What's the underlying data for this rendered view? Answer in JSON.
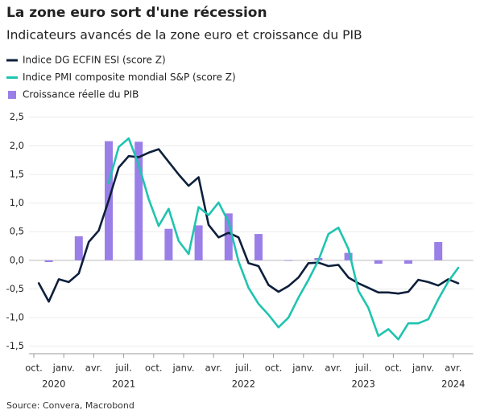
{
  "chart_data": {
    "type": "bar_line",
    "title": "La zone euro sort d'une récession",
    "subtitle": "Indicateurs avancés de la zone euro et croissance du PIB",
    "source": "Source: Convera, Macrobond",
    "categories": [
      "oct.",
      null,
      null,
      "janv.",
      null,
      null,
      "avr.",
      null,
      null,
      "juil.",
      null,
      null,
      "oct.",
      null,
      null,
      "janv.",
      null,
      null,
      "avr.",
      null,
      null,
      "juil.",
      null,
      null,
      "oct.",
      null,
      null,
      "janv.",
      null,
      null,
      "avr.",
      null,
      null,
      "juil.",
      null,
      null,
      "oct.",
      null,
      null,
      "janv.",
      null,
      null,
      "avr.",
      null
    ],
    "years": [
      null,
      null,
      "2020",
      null,
      null,
      null,
      null,
      null,
      null,
      "2021",
      null,
      null,
      null,
      null,
      null,
      null,
      null,
      null,
      null,
      null,
      null,
      "2022",
      null,
      null,
      null,
      null,
      null,
      null,
      null,
      null,
      null,
      null,
      null,
      "2023",
      null,
      null,
      null,
      null,
      null,
      null,
      null,
      null,
      "2024",
      null
    ],
    "series": [
      {
        "name": "Indice DG ECFIN ESI (score Z)",
        "kind": "line",
        "color": "#0d1f3c",
        "values": [
          -0.4,
          -0.72,
          -0.33,
          -0.38,
          -0.23,
          0.32,
          0.52,
          1.05,
          1.62,
          1.82,
          1.8,
          1.88,
          1.94,
          1.72,
          1.5,
          1.3,
          1.45,
          0.62,
          0.4,
          0.48,
          0.4,
          -0.05,
          -0.1,
          -0.43,
          -0.55,
          -0.45,
          -0.3,
          -0.05,
          -0.04,
          -0.1,
          -0.08,
          -0.3,
          -0.4,
          -0.48,
          -0.56,
          -0.56,
          -0.58,
          -0.55,
          -0.34,
          -0.38,
          -0.44,
          -0.33,
          -0.4,
          null
        ]
      },
      {
        "name": "Indice PMI composite mondial S&P (score Z)",
        "kind": "line",
        "color": "#1fc4b0",
        "values": [
          null,
          null,
          null,
          null,
          null,
          null,
          null,
          1.35,
          1.98,
          2.13,
          1.67,
          1.07,
          0.6,
          0.9,
          0.34,
          0.11,
          0.93,
          0.79,
          1.01,
          0.67,
          -0.02,
          -0.48,
          -0.76,
          -0.95,
          -1.17,
          -1.0,
          -0.65,
          -0.34,
          0,
          0.46,
          0.57,
          0.2,
          -0.53,
          -0.83,
          -1.32,
          -1.2,
          -1.38,
          -1.1,
          -1.1,
          -1.03,
          -0.68,
          -0.37,
          -0.13,
          null
        ]
      },
      {
        "name": "Croissance réelle du PIB",
        "kind": "bar",
        "color": "#9b7fe8",
        "values": [
          null,
          -0.03,
          null,
          null,
          0.42,
          null,
          null,
          2.08,
          null,
          null,
          2.07,
          null,
          null,
          0.55,
          null,
          null,
          0.61,
          null,
          null,
          0.82,
          null,
          null,
          0.46,
          null,
          null,
          -0.01,
          null,
          null,
          0.04,
          null,
          null,
          0.13,
          null,
          null,
          -0.06,
          null,
          null,
          -0.06,
          null,
          null,
          0.32,
          null,
          null,
          null
        ]
      }
    ],
    "ylim": [
      -1.63,
      2.58
    ],
    "yticks": [
      {
        "value": 2.5,
        "label": "2,5"
      },
      {
        "value": 2,
        "label": "2,0"
      },
      {
        "value": 1.5,
        "label": "1,5"
      },
      {
        "value": 1,
        "label": "1,0"
      },
      {
        "value": 0.5,
        "label": "0,5"
      },
      {
        "value": 0,
        "label": "0,0"
      },
      {
        "value": -0.5,
        "label": "-0,5"
      },
      {
        "value": -1,
        "label": "-1,0"
      },
      {
        "value": -1.5,
        "label": "-1,5"
      }
    ],
    "grid": true
  }
}
